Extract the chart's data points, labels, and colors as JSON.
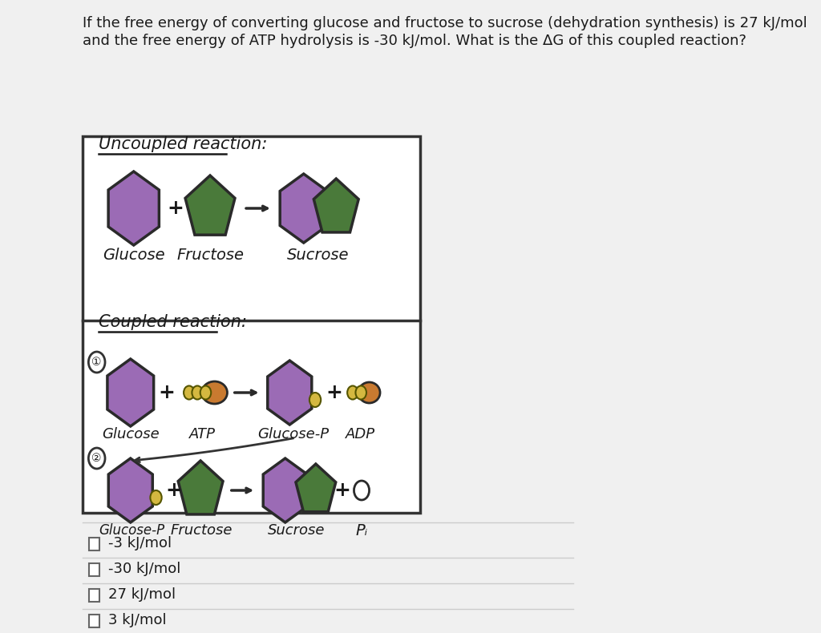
{
  "bg_color": "#f0f0f0",
  "white": "#ffffff",
  "question_text_line1": "If the free energy of converting glucose and fructose to sucrose (dehydration synthesis) is 27 kJ/mol",
  "question_text_line2": "and the free energy of ATP hydrolysis is -30 kJ/mol. What is the ΔG of this coupled reaction?",
  "purple_hex": "#9b6bb5",
  "green_hex": "#4a7a3a",
  "brown_hex": "#c97a30",
  "yellow_phos": "#d4b840",
  "options": [
    "-3 kJ/mol",
    "-30 kJ/mol",
    "27 kJ/mol",
    "3 kJ/mol"
  ]
}
